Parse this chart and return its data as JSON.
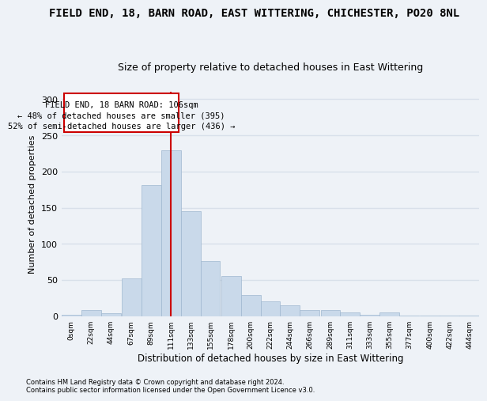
{
  "title": "FIELD END, 18, BARN ROAD, EAST WITTERING, CHICHESTER, PO20 8NL",
  "subtitle": "Size of property relative to detached houses in East Wittering",
  "xlabel": "Distribution of detached houses by size in East Wittering",
  "ylabel": "Number of detached properties",
  "footnote1": "Contains HM Land Registry data © Crown copyright and database right 2024.",
  "footnote2": "Contains public sector information licensed under the Open Government Licence v3.0.",
  "annotation_line1": "FIELD END, 18 BARN ROAD: 106sqm",
  "annotation_line2": "← 48% of detached houses are smaller (395)",
  "annotation_line3": "52% of semi-detached houses are larger (436) →",
  "bar_color": "#c9d9ea",
  "bar_edge_color": "#a0b8d0",
  "line_color": "#cc0000",
  "categories": [
    "0sqm",
    "22sqm",
    "44sqm",
    "67sqm",
    "89sqm",
    "111sqm",
    "133sqm",
    "155sqm",
    "178sqm",
    "200sqm",
    "222sqm",
    "244sqm",
    "266sqm",
    "289sqm",
    "311sqm",
    "333sqm",
    "355sqm",
    "377sqm",
    "400sqm",
    "422sqm",
    "444sqm"
  ],
  "tick_positions": [
    0,
    22,
    44,
    67,
    89,
    111,
    133,
    155,
    178,
    200,
    222,
    244,
    266,
    289,
    311,
    333,
    355,
    377,
    400,
    422,
    444
  ],
  "values": [
    2,
    8,
    4,
    52,
    181,
    229,
    145,
    76,
    55,
    29,
    20,
    15,
    8,
    8,
    5,
    2,
    5,
    1,
    1,
    1,
    1
  ],
  "ylim": [
    0,
    310
  ],
  "yticks": [
    0,
    50,
    100,
    150,
    200,
    250,
    300
  ],
  "background_color": "#eef2f7",
  "grid_color": "#d8e0ea",
  "title_fontsize": 10,
  "subtitle_fontsize": 9,
  "red_line_x": 111
}
